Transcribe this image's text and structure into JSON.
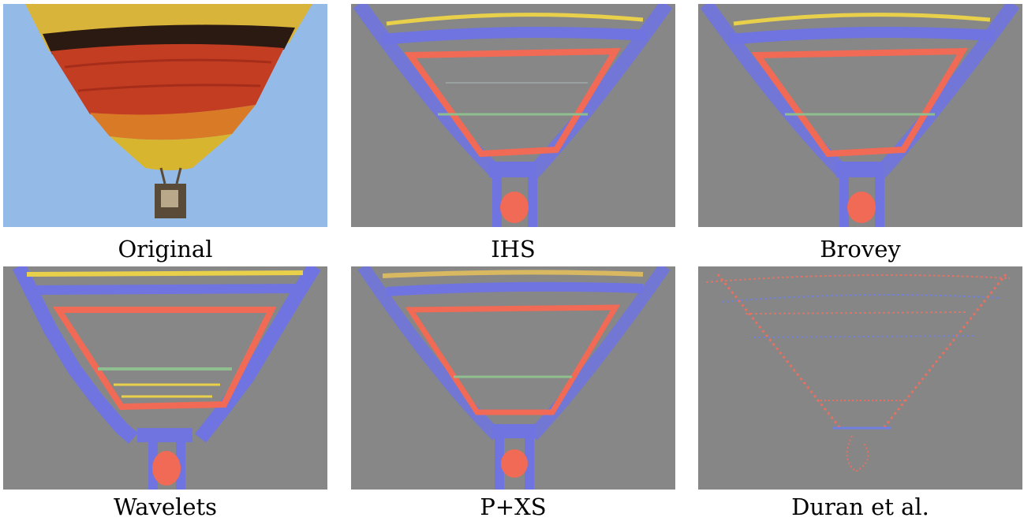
{
  "figure": {
    "panels": [
      {
        "caption": "Original"
      },
      {
        "caption": "IHS"
      },
      {
        "caption": "Brovey"
      },
      {
        "caption": "Wavelets"
      },
      {
        "caption": "P+XS"
      },
      {
        "caption": "Duran et al."
      }
    ]
  },
  "colors": {
    "sky": "#8fb8e6",
    "residual_gray": "#868686",
    "edge_blue": "#6f74e0",
    "edge_red": "#f06a55",
    "edge_yellow": "#e8d04a",
    "balloon_red": "#c0392b",
    "balloon_yellow": "#e0b928"
  }
}
